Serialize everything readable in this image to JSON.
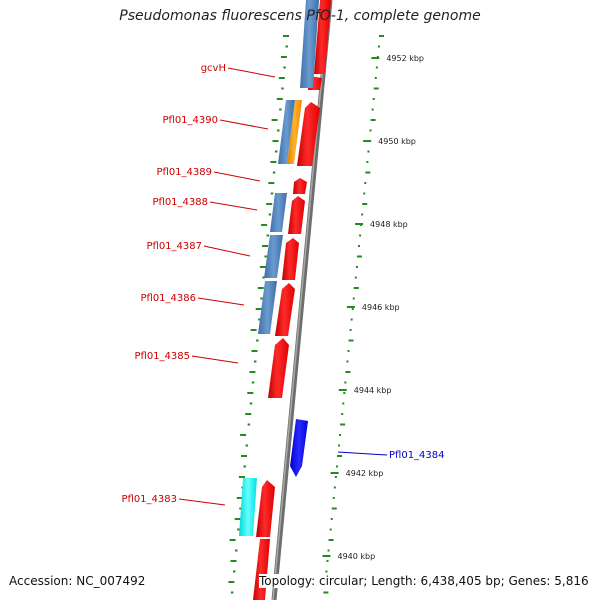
{
  "title": "Pseudomonas fluorescens PfO-1, complete genome",
  "footer": {
    "accession": "Accession: NC_007492",
    "summary": "Topology: circular; Length: 6,438,405 bp; Genes: 5,816"
  },
  "colors": {
    "backbone": "#808080",
    "cds_red": "#ff0000",
    "steelblue": "#4f86c0",
    "orange": "#ff9a00",
    "cyan": "#00ffff",
    "blue": "#0000ff",
    "gc_green": "#228b22",
    "label_red": "#cc0000",
    "label_blue": "#0000cc"
  },
  "scale_labels": [
    {
      "text": "4952 kbp",
      "kbp": 4952
    },
    {
      "text": "4950 kbp",
      "kbp": 4950
    },
    {
      "text": "4948 kbp",
      "kbp": 4948
    },
    {
      "text": "4946 kbp",
      "kbp": 4946
    },
    {
      "text": "4944 kbp",
      "kbp": 4944
    },
    {
      "text": "4942 kbp",
      "kbp": 4942
    },
    {
      "text": "4940 kbp",
      "kbp": 4940
    }
  ],
  "gene_labels": [
    {
      "text": "gcvH",
      "color": "red"
    },
    {
      "text": "Pfl01_4390",
      "color": "red"
    },
    {
      "text": "Pfl01_4389",
      "color": "red"
    },
    {
      "text": "Pfl01_4388",
      "color": "red"
    },
    {
      "text": "Pfl01_4387",
      "color": "red"
    },
    {
      "text": "Pfl01_4386",
      "color": "red"
    },
    {
      "text": "Pfl01_4385",
      "color": "red"
    },
    {
      "text": "Pfl01_4384",
      "color": "blue"
    },
    {
      "text": "Pfl01_4383",
      "color": "red"
    }
  ]
}
